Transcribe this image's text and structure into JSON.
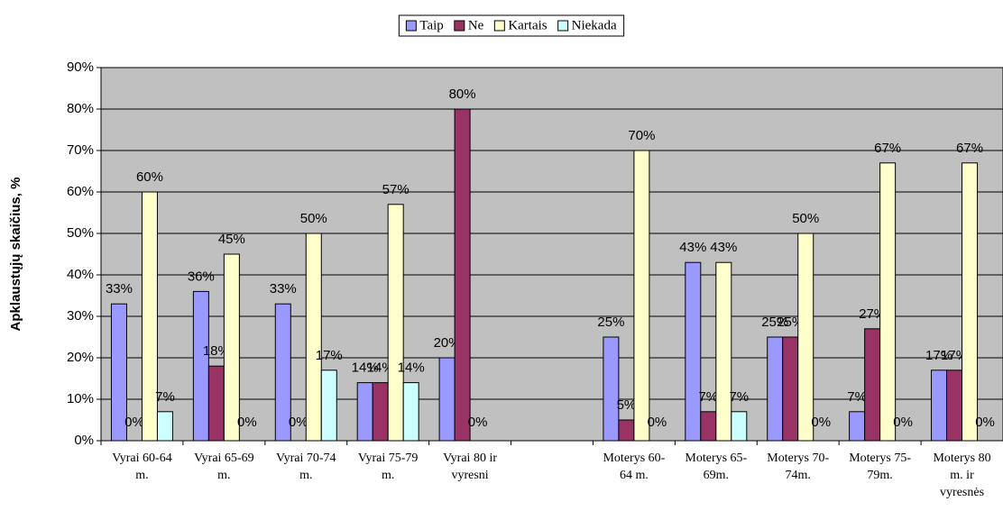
{
  "chart_data": {
    "type": "bar",
    "y_label": "Apklaustųjų skaičius, %",
    "categories": [
      "Vyrai 60-64 m.",
      "Vyrai 65-69 m.",
      "Vyrai 70-74 m.",
      "Vyrai 75-79 m.",
      "Vyrai 80 ir vyresni",
      null,
      "Moterys 60-64 m.",
      "Moterys 65-69m.",
      "Moterys 70-74m.",
      "Moterys 75-79m.",
      "Moterys 80 m. ir vyresnės"
    ],
    "series": [
      {
        "name": "Taip",
        "color": "#9999ff",
        "values": [
          33,
          36,
          33,
          14,
          20,
          null,
          25,
          43,
          25,
          7,
          17
        ],
        "value_labels": [
          "33%",
          "36%",
          "33%",
          "14%",
          "20%",
          null,
          "25%",
          "43%",
          "25%",
          "7%",
          "17%"
        ]
      },
      {
        "name": "Ne",
        "color": "#993366",
        "values": [
          0,
          18,
          0,
          14,
          80,
          null,
          5,
          7,
          25,
          27,
          17
        ],
        "value_labels": [
          "0%",
          "18%",
          "0%",
          "14%",
          "80%",
          null,
          "5%",
          "7%",
          "25%",
          "27%",
          "17%"
        ]
      },
      {
        "name": "Kartais",
        "color": "#ffffcc",
        "values": [
          60,
          45,
          50,
          57,
          0,
          null,
          70,
          43,
          50,
          67,
          67
        ],
        "value_labels": [
          "60%",
          "45%",
          "50%",
          "57%",
          "0%",
          null,
          "70%",
          "43%",
          "50%",
          "67%",
          "67%"
        ]
      },
      {
        "name": "Niekada",
        "color": "#ccffff",
        "values": [
          7,
          0,
          17,
          14,
          null,
          null,
          0,
          7,
          0,
          0,
          0
        ],
        "value_labels": [
          "7%",
          "0%",
          "17%",
          "14%",
          null,
          null,
          "0%",
          "7%",
          "0%",
          "0%",
          "0%"
        ]
      }
    ],
    "ylim": [
      0,
      90
    ],
    "yticks": [
      {
        "value": 0,
        "label": "0%"
      },
      {
        "value": 10,
        "label": "10%"
      },
      {
        "value": 20,
        "label": "20%"
      },
      {
        "value": 30,
        "label": "30%"
      },
      {
        "value": 40,
        "label": "40%"
      },
      {
        "value": 50,
        "label": "50%"
      },
      {
        "value": 60,
        "label": "60%"
      },
      {
        "value": 70,
        "label": "70%"
      },
      {
        "value": 80,
        "label": "80%"
      },
      {
        "value": 90,
        "label": "90%"
      }
    ],
    "grid": true,
    "legend": "top",
    "plot_background": "#c0c0c0"
  }
}
